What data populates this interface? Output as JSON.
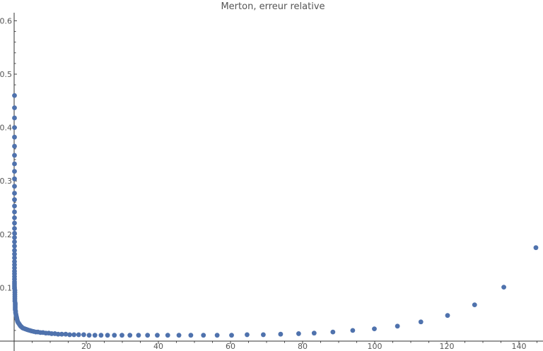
{
  "chart_data": {
    "type": "scatter",
    "title": "Merton, erreur relative",
    "xlabel": "",
    "ylabel": "",
    "xlim": [
      -4,
      148
    ],
    "ylim": [
      0,
      0.625
    ],
    "x_ticks": [
      20,
      40,
      60,
      80,
      100,
      120,
      140
    ],
    "x_tick_labels": [
      "20",
      "40",
      "60",
      "80",
      "100",
      "120",
      "140"
    ],
    "y_ticks": [
      0.1,
      0.2,
      0.3,
      0.4,
      0.5,
      0.6
    ],
    "y_tick_labels": [
      "0.1",
      "0.2",
      "0.3",
      "0.4",
      "0.5",
      "0.6"
    ],
    "grid": false,
    "legend": "none",
    "marker_color": "#4f72ad",
    "series": [
      {
        "x": [
          0.1,
          0.1,
          0.1,
          0.1,
          0.1,
          0.1,
          0.1,
          0.1,
          0.1,
          0.1,
          0.1,
          0.1,
          0.1,
          0.1,
          0.1,
          0.1,
          0.1,
          0.1,
          0.1,
          0.1,
          0.1,
          0.1,
          0.1,
          0.1,
          0.1,
          0.1,
          0.1,
          0.1,
          0.1,
          0.1,
          0.1,
          0.1,
          0.1,
          0.1,
          0.1,
          0.1,
          0.2,
          0.2,
          0.2,
          0.2,
          0.2,
          0.2,
          0.3,
          0.3,
          0.3,
          0.3,
          0.3,
          0.4,
          0.4,
          0.5,
          0.6,
          0.7,
          0.8,
          0.9,
          1.0,
          1.2,
          1.4,
          1.6,
          1.8,
          2.0,
          2.3,
          2.6,
          3.0,
          3.4,
          3.8,
          4.3,
          4.8,
          5.4,
          6.0,
          6.6,
          7.3,
          8.0,
          8.8,
          9.6,
          10.4,
          11.3,
          12.2,
          13.2,
          14.3,
          15.4,
          16.6,
          17.9,
          19.3,
          20.8,
          22.4,
          24.1,
          25.9,
          27.8,
          29.9,
          32.1,
          34.5,
          37.0,
          39.7,
          42.6,
          45.7,
          49.0,
          52.5,
          56.3,
          60.3,
          64.6,
          69.1,
          73.9,
          78.9,
          83.2,
          88.4,
          93.9,
          99.9,
          106.3,
          112.8,
          120.2,
          127.7,
          135.8,
          144.7
        ],
        "y": [
          0.46,
          0.437,
          0.418,
          0.4,
          0.382,
          0.365,
          0.348,
          0.332,
          0.318,
          0.304,
          0.29,
          0.277,
          0.265,
          0.253,
          0.242,
          0.231,
          0.221,
          0.211,
          0.202,
          0.194,
          0.186,
          0.178,
          0.17,
          0.163,
          0.156,
          0.149,
          0.143,
          0.137,
          0.131,
          0.126,
          0.121,
          0.116,
          0.111,
          0.107,
          0.103,
          0.099,
          0.095,
          0.091,
          0.087,
          0.083,
          0.079,
          0.075,
          0.071,
          0.068,
          0.065,
          0.062,
          0.059,
          0.056,
          0.053,
          0.05,
          0.047,
          0.044,
          0.041,
          0.038,
          0.036,
          0.034,
          0.032,
          0.03,
          0.028,
          0.027,
          0.025,
          0.024,
          0.023,
          0.022,
          0.021,
          0.02,
          0.019,
          0.018,
          0.017,
          0.017,
          0.016,
          0.016,
          0.015,
          0.015,
          0.014,
          0.014,
          0.013,
          0.013,
          0.013,
          0.012,
          0.012,
          0.012,
          0.012,
          0.011,
          0.011,
          0.011,
          0.011,
          0.011,
          0.011,
          0.011,
          0.011,
          0.011,
          0.011,
          0.011,
          0.011,
          0.011,
          0.011,
          0.011,
          0.011,
          0.012,
          0.012,
          0.013,
          0.014,
          0.015,
          0.017,
          0.02,
          0.023,
          0.028,
          0.036,
          0.048,
          0.068,
          0.101,
          0.175
        ]
      }
    ]
  }
}
